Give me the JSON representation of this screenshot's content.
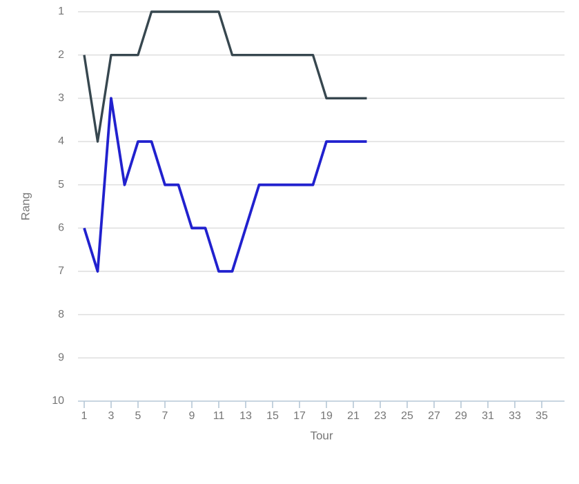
{
  "chart_data": {
    "type": "line",
    "title": "",
    "xlabel": "Tour",
    "ylabel": "Rang",
    "x": [
      1,
      2,
      3,
      4,
      5,
      6,
      7,
      8,
      9,
      10,
      11,
      12,
      13,
      14,
      15,
      16,
      17,
      18,
      19,
      20,
      21,
      22
    ],
    "series": [
      {
        "name": "rang-serie-sombre",
        "color": "#37474f",
        "stroke_width": 3.4,
        "values": [
          2,
          4,
          2,
          2,
          2,
          1,
          1,
          1,
          1,
          1,
          1,
          2,
          2,
          2,
          2,
          2,
          2,
          2,
          3,
          3,
          3,
          3
        ]
      },
      {
        "name": "rang-serie-bleue",
        "color": "#2121ce",
        "stroke_width": 3.8,
        "values": [
          6,
          7,
          3,
          5,
          4,
          4,
          5,
          5,
          6,
          6,
          7,
          7,
          6,
          5,
          5,
          5,
          5,
          5,
          4,
          4,
          4,
          4
        ]
      }
    ],
    "x_axis": {
      "ticks": [
        1,
        3,
        5,
        7,
        9,
        11,
        13,
        15,
        17,
        19,
        21,
        23,
        25,
        27,
        29,
        31,
        33,
        35
      ],
      "range": [
        1,
        36
      ]
    },
    "y_axis": {
      "ticks": [
        1,
        2,
        3,
        4,
        5,
        6,
        7,
        8,
        9,
        10
      ],
      "range": [
        1,
        10
      ],
      "inverted": true
    },
    "grid": "horizontal",
    "legend": "none",
    "colors": {
      "grid": "#dedede",
      "axis_line": "#b6c7d6",
      "tick_mark": "#b6c7d6",
      "tick_text": "#757575",
      "axis_title_text": "#757575",
      "background": "#ffffff"
    }
  }
}
